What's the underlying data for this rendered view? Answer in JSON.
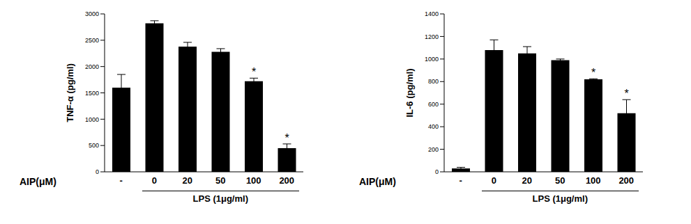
{
  "chart_data": [
    {
      "type": "bar",
      "y_label": "TNF-α (pg/ml)",
      "x_label": "AIP(μM)",
      "group_label": "LPS (1μg/ml)",
      "categories": [
        "-",
        "0",
        "20",
        "50",
        "100",
        "200"
      ],
      "values": [
        1600,
        2820,
        2380,
        2280,
        1720,
        450
      ],
      "errors": [
        250,
        50,
        80,
        60,
        60,
        80
      ],
      "annotations": [
        null,
        null,
        null,
        null,
        "*",
        "*"
      ],
      "color": "#000000",
      "ylim": [
        0,
        3000
      ],
      "yticks": [
        0,
        500,
        1000,
        1500,
        2000,
        2500,
        3000
      ],
      "grid": false
    },
    {
      "type": "bar",
      "y_label": "IL-6 (pg/ml)",
      "x_label": "AIP(μM)",
      "group_label": "LPS (1μg/ml)",
      "categories": [
        "-",
        "0",
        "20",
        "50",
        "100",
        "200"
      ],
      "values": [
        30,
        1080,
        1050,
        990,
        820,
        520
      ],
      "errors": [
        10,
        90,
        60,
        10,
        5,
        120
      ],
      "annotations": [
        null,
        null,
        null,
        null,
        "*",
        "*"
      ],
      "color": "#000000",
      "ylim": [
        0,
        1400
      ],
      "yticks": [
        0,
        200,
        400,
        600,
        800,
        1000,
        1200,
        1400
      ],
      "grid": false
    }
  ]
}
